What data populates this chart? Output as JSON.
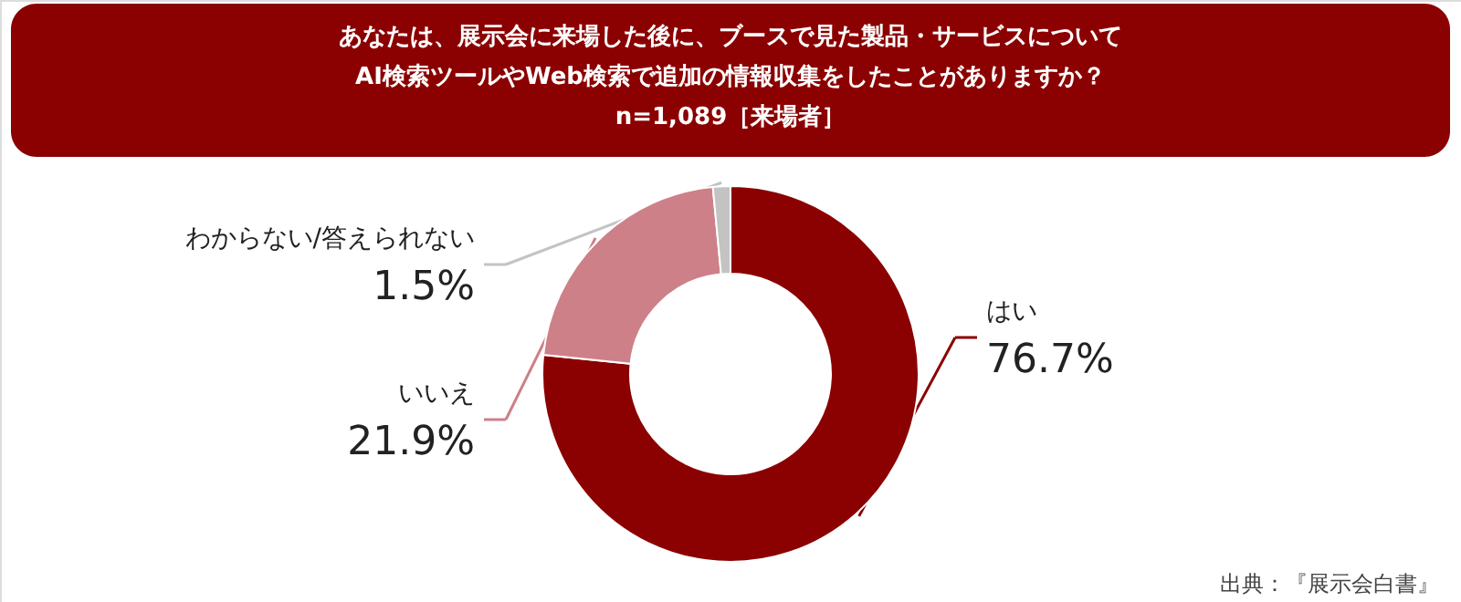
{
  "chart_data": {
    "type": "donut",
    "title": "あなたは、展示会に来場した後に、ブースで見た製品・サービスについてAI検索ツールやWeb検索で追加の情報収集をしたことがありますか？",
    "subtitle": "n=1,089［来場者］",
    "categories": [
      "はい",
      "いいえ",
      "わからない/答えられない"
    ],
    "values": [
      76.7,
      21.9,
      1.5
    ],
    "value_labels": [
      "76.7%",
      "21.9%",
      "1.5%"
    ],
    "colors": [
      "#8b0000",
      "#cd8088",
      "#c3c3c3"
    ],
    "annotations": [
      "出典：『展示会白書』"
    ]
  }
}
